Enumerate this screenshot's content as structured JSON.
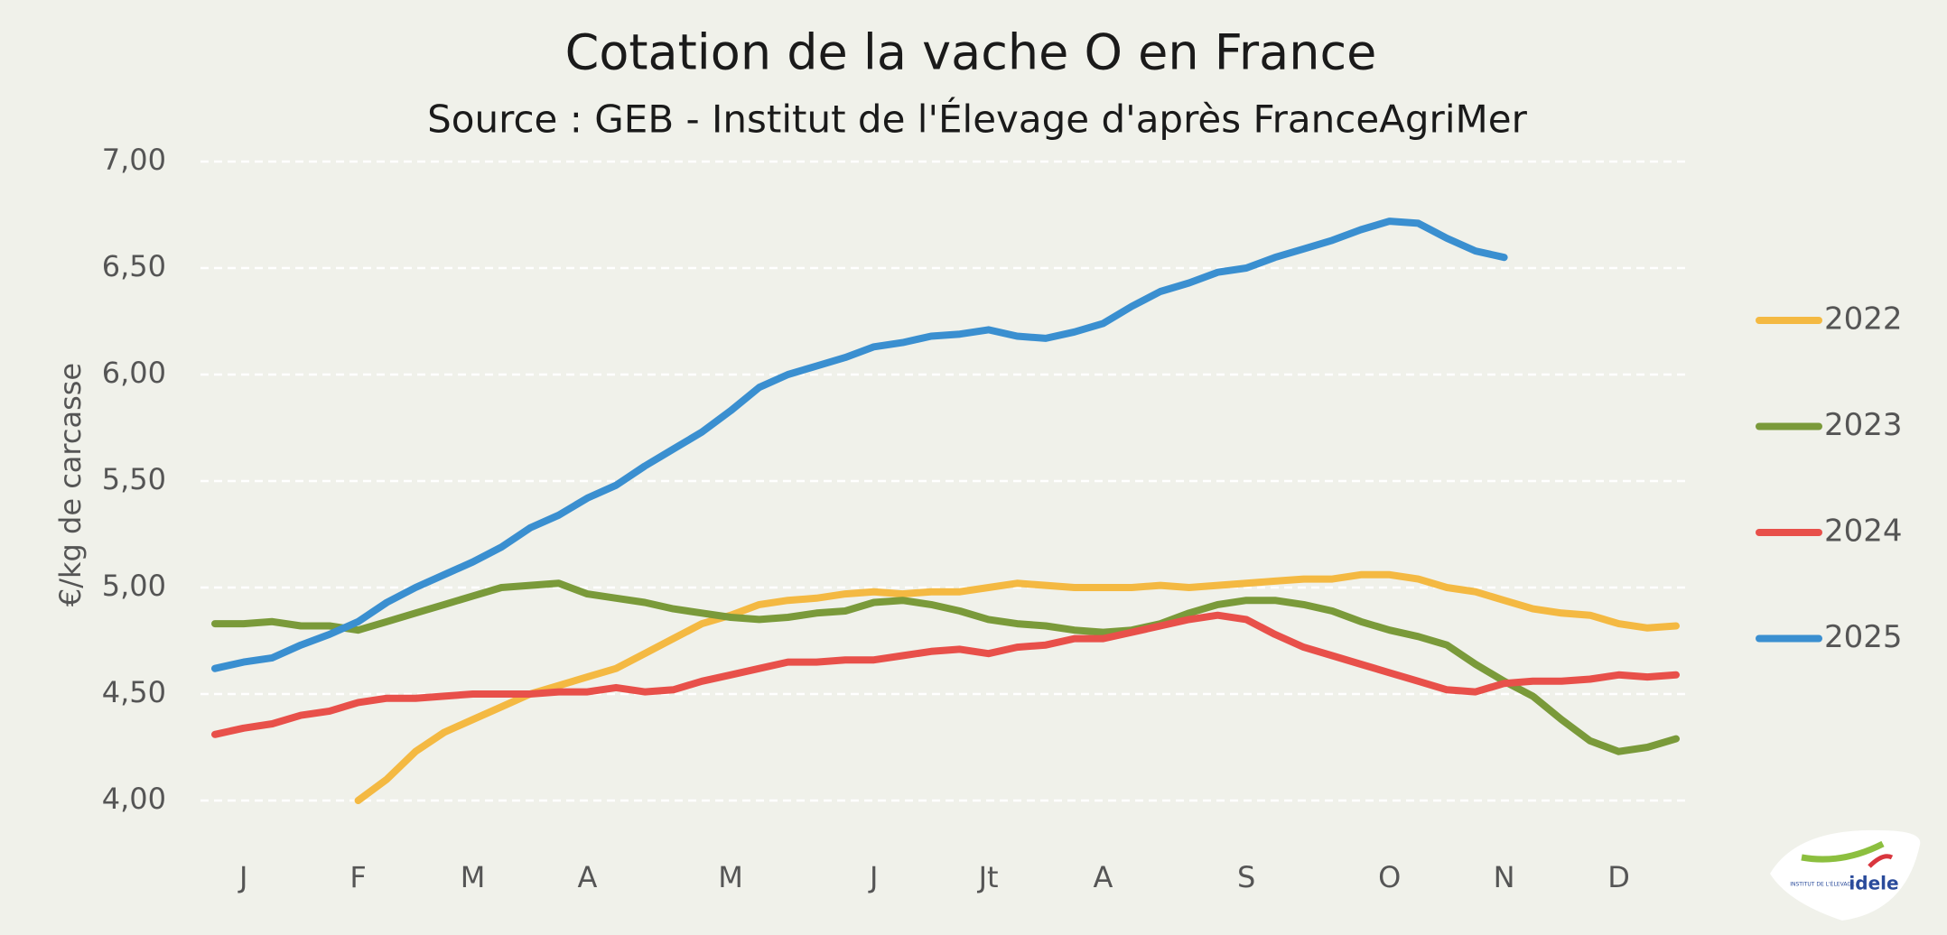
{
  "chart_data": {
    "type": "line",
    "title": "Cotation de la vache O en France",
    "subtitle": "Source : GEB - Institut de l'Élevage d'après FranceAgriMer",
    "y_label": "€/kg de carcasse",
    "categories": [
      null,
      "J",
      null,
      null,
      null,
      "F",
      null,
      null,
      null,
      "M",
      null,
      null,
      null,
      "A",
      null,
      null,
      null,
      null,
      "M",
      null,
      null,
      null,
      null,
      "J",
      null,
      null,
      null,
      "Jt",
      null,
      null,
      null,
      "A",
      null,
      null,
      null,
      null,
      "S",
      null,
      null,
      null,
      null,
      "O",
      null,
      null,
      null,
      "N",
      null,
      null,
      null,
      "D",
      null,
      null
    ],
    "ylim": [
      4,
      7
    ],
    "yticks": [
      {
        "value": 4,
        "label": "4,00"
      },
      {
        "value": 4.5,
        "label": "4,50"
      },
      {
        "value": 5,
        "label": "5,00"
      },
      {
        "value": 5.5,
        "label": "5,50"
      },
      {
        "value": 6,
        "label": "6,00"
      },
      {
        "value": 6.5,
        "label": "6,50"
      },
      {
        "value": 7,
        "label": "7,00"
      }
    ],
    "grid": true,
    "legend": "right",
    "series": [
      {
        "name": "2022",
        "color": "#f4b942",
        "values": [
          null,
          null,
          null,
          null,
          null,
          4.0,
          4.1,
          4.23,
          4.32,
          4.38,
          4.44,
          4.5,
          4.54,
          4.58,
          4.62,
          4.69,
          4.76,
          4.83,
          4.87,
          4.92,
          4.94,
          4.95,
          4.97,
          4.98,
          4.97,
          4.98,
          4.98,
          5.0,
          5.02,
          5.01,
          5.0,
          5.0,
          5.0,
          5.01,
          5.0,
          5.01,
          5.02,
          5.03,
          5.04,
          5.04,
          5.06,
          5.06,
          5.04,
          5.0,
          4.98,
          4.94,
          4.9,
          4.88,
          4.87,
          4.83,
          4.81,
          4.82
        ]
      },
      {
        "name": "2023",
        "color": "#7a9a3a",
        "values": [
          4.83,
          4.83,
          4.84,
          4.82,
          4.82,
          4.8,
          4.84,
          4.88,
          4.92,
          4.96,
          5.0,
          5.01,
          5.02,
          4.97,
          4.95,
          4.93,
          4.9,
          4.88,
          4.86,
          4.85,
          4.86,
          4.88,
          4.89,
          4.93,
          4.94,
          4.92,
          4.89,
          4.85,
          4.83,
          4.82,
          4.8,
          4.79,
          4.8,
          4.83,
          4.88,
          4.92,
          4.94,
          4.94,
          4.92,
          4.89,
          4.84,
          4.8,
          4.77,
          4.73,
          4.64,
          4.56,
          4.49,
          4.38,
          4.28,
          4.23,
          4.25,
          4.29
        ]
      },
      {
        "name": "2024",
        "color": "#e8504a",
        "values": [
          4.31,
          4.34,
          4.36,
          4.4,
          4.42,
          4.46,
          4.48,
          4.48,
          4.49,
          4.5,
          4.5,
          4.5,
          4.51,
          4.51,
          4.53,
          4.51,
          4.52,
          4.56,
          4.59,
          4.62,
          4.65,
          4.65,
          4.66,
          4.66,
          4.68,
          4.7,
          4.71,
          4.69,
          4.72,
          4.73,
          4.76,
          4.76,
          4.79,
          4.82,
          4.85,
          4.87,
          4.85,
          4.78,
          4.72,
          4.68,
          4.64,
          4.6,
          4.56,
          4.52,
          4.51,
          4.55,
          4.56,
          4.56,
          4.57,
          4.59,
          4.58,
          4.59
        ]
      },
      {
        "name": "2025",
        "color": "#3a8fd0",
        "values": [
          4.62,
          4.65,
          4.67,
          4.73,
          4.78,
          4.84,
          4.93,
          5.0,
          5.06,
          5.12,
          5.19,
          5.28,
          5.34,
          5.42,
          5.48,
          5.57,
          5.65,
          5.73,
          5.83,
          5.94,
          6.0,
          6.04,
          6.08,
          6.13,
          6.15,
          6.18,
          6.19,
          6.21,
          6.18,
          6.17,
          6.2,
          6.24,
          6.32,
          6.39,
          6.43,
          6.48,
          6.5,
          6.55,
          6.59,
          6.63,
          6.68,
          6.72,
          6.71,
          6.64,
          6.58,
          6.55,
          null,
          null,
          null,
          null,
          null,
          null
        ]
      }
    ],
    "logo": {
      "name": "idele",
      "caption": "INSTITUT DE L'ÉLEVAGE"
    }
  }
}
